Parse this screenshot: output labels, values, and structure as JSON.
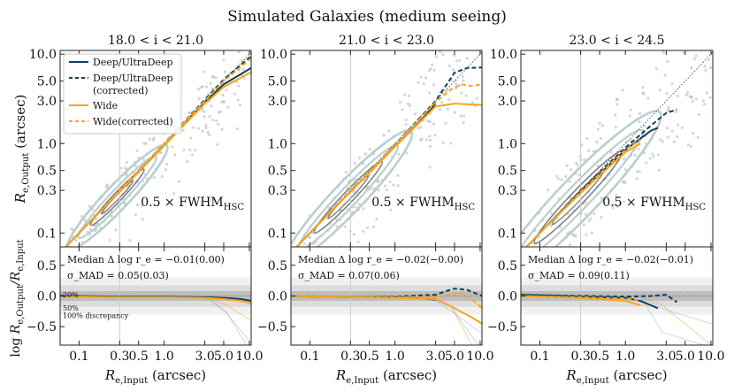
{
  "figure": {
    "title": "Simulated Galaxies (medium seeing)",
    "ylabel_top": "R_{e,Output} (arcsec)",
    "ylabel_bottom": "log R_{e,Output}/R_{e,Input}",
    "xlabel": "R_{e,Input} (arcsec)"
  },
  "legend": {
    "items": [
      {
        "label": "Deep/UltraDeep",
        "color": "#0f3d5c",
        "dash": "solid"
      },
      {
        "label": "Deep/UltraDeep",
        "label2": "(corrected)",
        "color": "#0f3d5c",
        "dash": "dashed"
      },
      {
        "label": "Wide",
        "color": "#f5a623",
        "dash": "solid"
      },
      {
        "label": "Wide(corrected)",
        "color": "#f5a623",
        "dash": "dashed"
      }
    ]
  },
  "colors": {
    "deep": "#0f3d5c",
    "wide": "#f5a623",
    "contour_dark": "#7f7f86",
    "contour_light": "#b9cfcf",
    "scatter": "#b4b4b4",
    "band_inner": "#bdbdbd",
    "band_mid": "#dcdcdc",
    "band_outer": "#f0f0f0"
  },
  "bands": {
    "labels": [
      "20%",
      "50%",
      "100% discrepancy"
    ]
  },
  "chart_data": [
    {
      "type": "line",
      "panel": "top-left",
      "title": "18.0 < i < 21.0",
      "annotation": "0.5 × FWHM",
      "annotation_sub": "HSC",
      "xscale": "log",
      "yscale": "log",
      "xlim": [
        0.06,
        10.5
      ],
      "ylim": [
        0.07,
        11
      ],
      "xticks": [
        "0.1",
        "0.3",
        "0.5",
        "1.0",
        "3.0",
        "5.0",
        "10.0"
      ],
      "yticks": [
        "0.1",
        "0.3",
        "0.5",
        "1.0",
        "3.0",
        "5.0",
        "10.0"
      ],
      "fwhm_x": 0.3,
      "series": [
        {
          "name": "Deep/UltraDeep",
          "style": "solid",
          "color": "#0f3d5c",
          "x": [
            0.06,
            0.1,
            0.3,
            0.5,
            1.0,
            3.0,
            5.0,
            10.5
          ],
          "y": [
            0.06,
            0.1,
            0.29,
            0.48,
            0.95,
            2.9,
            4.6,
            7.0
          ]
        },
        {
          "name": "Deep/UltraDeep (corrected)",
          "style": "dashed",
          "color": "#0f3d5c",
          "x": [
            0.06,
            0.1,
            0.3,
            0.5,
            1.0,
            3.0,
            5.0,
            10.5
          ],
          "y": [
            0.06,
            0.1,
            0.3,
            0.5,
            1.0,
            3.1,
            5.2,
            9.5
          ]
        },
        {
          "name": "Wide",
          "style": "solid",
          "color": "#f5a623",
          "x": [
            0.06,
            0.1,
            0.3,
            0.5,
            1.0,
            3.0,
            5.0,
            10.5
          ],
          "y": [
            0.06,
            0.1,
            0.29,
            0.48,
            0.95,
            2.8,
            4.3,
            6.3
          ]
        },
        {
          "name": "Wide(corrected)",
          "style": "dashed",
          "color": "#f5a623",
          "x": [
            0.06,
            0.1,
            0.3,
            0.5,
            1.0,
            3.0,
            5.0,
            10.5
          ],
          "y": [
            0.06,
            0.1,
            0.3,
            0.5,
            1.0,
            3.0,
            5.0,
            9.0
          ]
        }
      ]
    },
    {
      "type": "line",
      "panel": "top-middle",
      "title": "21.0 < i < 23.0",
      "annotation": "0.5 × FWHM",
      "annotation_sub": "HSC",
      "xscale": "log",
      "yscale": "log",
      "xlim": [
        0.06,
        10.5
      ],
      "ylim": [
        0.07,
        11
      ],
      "xticks": [
        "0.1",
        "0.3",
        "0.5",
        "1.0",
        "3.0",
        "5.0",
        "10.0"
      ],
      "yticks": [
        "0.1",
        "0.3",
        "0.5",
        "1.0",
        "3.0",
        "5.0",
        "10.0"
      ],
      "fwhm_x": 0.3,
      "series": [
        {
          "name": "Deep/UltraDeep",
          "style": "solid",
          "color": "#0f3d5c",
          "x": [
            0.06,
            0.1,
            0.3,
            0.5,
            1.0,
            2.0,
            3.0
          ],
          "y": [
            0.06,
            0.1,
            0.29,
            0.47,
            0.93,
            1.8,
            2.8
          ]
        },
        {
          "name": "Deep/UltraDeep (corrected)",
          "style": "dashed",
          "color": "#0f3d5c",
          "x": [
            0.06,
            0.1,
            0.3,
            0.5,
            1.0,
            3.0,
            4.0,
            5.0,
            7.0,
            10.5
          ],
          "y": [
            0.06,
            0.1,
            0.3,
            0.49,
            0.97,
            3.0,
            4.5,
            6.2,
            7.0,
            7.1
          ]
        },
        {
          "name": "Wide",
          "style": "solid",
          "color": "#f5a623",
          "x": [
            0.06,
            0.1,
            0.3,
            0.5,
            1.0,
            3.0,
            5.0,
            10.5
          ],
          "y": [
            0.06,
            0.1,
            0.29,
            0.47,
            0.92,
            2.6,
            2.8,
            2.7
          ]
        },
        {
          "name": "Wide(corrected)",
          "style": "dashed",
          "color": "#f5a623",
          "x": [
            0.06,
            0.1,
            0.3,
            0.5,
            1.0,
            3.0,
            4.5,
            6.0,
            8.0,
            10.5
          ],
          "y": [
            0.06,
            0.1,
            0.3,
            0.49,
            0.96,
            2.9,
            4.0,
            4.6,
            4.4,
            4.6
          ]
        }
      ]
    },
    {
      "type": "line",
      "panel": "top-right",
      "title": "23.0 < i < 24.5",
      "annotation": "0.5 × FWHM",
      "annotation_sub": "HSC",
      "xscale": "log",
      "yscale": "log",
      "xlim": [
        0.06,
        10.5
      ],
      "ylim": [
        0.07,
        11
      ],
      "xticks": [
        "0.1",
        "0.3",
        "0.5",
        "1.0",
        "3.0",
        "5.0",
        "10.0"
      ],
      "yticks": [
        "0.1",
        "0.3",
        "0.5",
        "1.0",
        "3.0",
        "5.0",
        "10.0"
      ],
      "fwhm_x": 0.3,
      "series": [
        {
          "name": "Deep/UltraDeep",
          "style": "solid",
          "color": "#0f3d5c",
          "x": [
            0.06,
            0.1,
            0.3,
            0.5,
            1.0,
            2.0,
            2.4
          ],
          "y": [
            0.06,
            0.1,
            0.29,
            0.46,
            0.85,
            1.4,
            1.5
          ]
        },
        {
          "name": "Deep/UltraDeep (corrected)",
          "style": "dashed",
          "color": "#0f3d5c",
          "x": [
            0.06,
            0.1,
            0.3,
            0.5,
            1.0,
            2.0,
            3.0,
            4.0
          ],
          "y": [
            0.06,
            0.1,
            0.3,
            0.48,
            0.9,
            1.6,
            2.2,
            2.4
          ]
        },
        {
          "name": "Wide",
          "style": "solid",
          "color": "#f5a623",
          "x": [
            0.06,
            0.1,
            0.3,
            0.5,
            1.0,
            1.5
          ],
          "y": [
            0.06,
            0.1,
            0.28,
            0.44,
            0.8,
            1.0
          ]
        },
        {
          "name": "Wide(corrected)",
          "style": "dashed",
          "color": "#f5a623",
          "x": [
            0.06,
            0.1,
            0.3,
            0.5,
            1.0,
            1.5
          ],
          "y": [
            0.06,
            0.1,
            0.29,
            0.46,
            0.85,
            1.1
          ]
        }
      ]
    },
    {
      "type": "line",
      "panel": "bottom-left",
      "stats": [
        "Median Δ log r_e = −0.01(0.00)",
        "σ_MAD = 0.05(0.03)"
      ],
      "xscale": "log",
      "xlim": [
        0.06,
        10.5
      ],
      "ylim": [
        -0.8,
        0.8
      ],
      "xticks": [
        "0.1",
        "0.3",
        "0.5",
        "1.0",
        "3.0",
        "5.0",
        "10.0"
      ],
      "yticks": [
        "0.5",
        "0.0",
        "−0.5"
      ],
      "series": [
        {
          "name": "Deep/UltraDeep",
          "style": "solid",
          "color": "#0f3d5c",
          "x": [
            0.06,
            0.1,
            0.3,
            1.0,
            3.0,
            5.0,
            8.0,
            10.5
          ],
          "y": [
            0.01,
            0.0,
            -0.01,
            -0.01,
            -0.02,
            -0.03,
            -0.05,
            -0.08
          ]
        },
        {
          "name": "Wide",
          "style": "solid",
          "color": "#f5a623",
          "x": [
            0.06,
            0.1,
            0.3,
            1.0,
            3.0,
            5.0,
            8.0,
            10.5
          ],
          "y": [
            0.0,
            -0.01,
            -0.02,
            -0.02,
            -0.03,
            -0.05,
            -0.08,
            -0.12
          ]
        }
      ]
    },
    {
      "type": "line",
      "panel": "bottom-middle",
      "stats": [
        "Median Δ log r_e = −0.02(−0.00)",
        "σ_MAD = 0.07(0.06)"
      ],
      "xscale": "log",
      "xlim": [
        0.06,
        10.5
      ],
      "ylim": [
        -0.8,
        0.8
      ],
      "xticks": [
        "0.1",
        "0.3",
        "0.5",
        "1.0",
        "3.0",
        "5.0",
        "10.0"
      ],
      "yticks": [
        "0.5",
        "0.0",
        "−0.5"
      ],
      "series": [
        {
          "name": "Deep/UltraDeep",
          "style": "solid",
          "color": "#0f3d5c",
          "x": [
            0.06,
            0.1,
            0.3,
            1.0,
            2.0,
            3.0
          ],
          "y": [
            0.0,
            -0.01,
            -0.02,
            -0.02,
            -0.04,
            -0.06
          ]
        },
        {
          "name": "Deep/UltraDeep (corrected)",
          "style": "dashed",
          "color": "#0f3d5c",
          "x": [
            0.06,
            0.3,
            1.0,
            3.0,
            4.0,
            5.0,
            7.0,
            10.5
          ],
          "y": [
            0.0,
            -0.01,
            -0.01,
            0.02,
            0.08,
            0.12,
            0.1,
            0.0
          ]
        },
        {
          "name": "Wide",
          "style": "solid",
          "color": "#f5a623",
          "x": [
            0.06,
            0.1,
            0.3,
            1.0,
            3.0,
            5.0,
            8.0,
            10.5
          ],
          "y": [
            0.0,
            -0.01,
            -0.02,
            -0.03,
            -0.05,
            -0.2,
            -0.35,
            -0.45
          ]
        },
        {
          "name": "Wide(corrected)",
          "style": "dashed",
          "color": "#f5a623",
          "x": [
            0.06,
            0.3,
            1.0,
            3.0,
            4.5,
            6.0,
            8.0,
            10.5
          ],
          "y": [
            0.0,
            -0.01,
            -0.02,
            -0.02,
            0.02,
            0.05,
            -0.05,
            -0.2
          ]
        }
      ]
    },
    {
      "type": "line",
      "panel": "bottom-right",
      "stats": [
        "Median Δ log r_e = −0.02(−0.01)",
        "σ_MAD = 0.09(0.11)"
      ],
      "xscale": "log",
      "xlim": [
        0.06,
        10.5
      ],
      "ylim": [
        -0.8,
        0.8
      ],
      "xticks": [
        "0.1",
        "0.3",
        "0.5",
        "1.0",
        "3.0",
        "5.0",
        "10.0"
      ],
      "yticks": [
        "0.5",
        "0.0",
        "−0.5"
      ],
      "series": [
        {
          "name": "Deep/UltraDeep",
          "style": "solid",
          "color": "#0f3d5c",
          "x": [
            0.06,
            0.1,
            0.3,
            1.0,
            1.5,
            2.4
          ],
          "y": [
            0.02,
            0.01,
            -0.01,
            -0.03,
            -0.08,
            -0.2
          ]
        },
        {
          "name": "Deep/UltraDeep (corrected)",
          "style": "dashed",
          "color": "#0f3d5c",
          "x": [
            0.06,
            0.3,
            1.0,
            2.0,
            3.0,
            4.0
          ],
          "y": [
            0.02,
            0.0,
            -0.01,
            0.0,
            0.02,
            -0.1
          ]
        },
        {
          "name": "Wide",
          "style": "solid",
          "color": "#f5a623",
          "x": [
            0.06,
            0.1,
            0.3,
            1.0,
            1.5
          ],
          "y": [
            0.0,
            -0.01,
            -0.03,
            -0.08,
            -0.15
          ]
        },
        {
          "name": "Wide(corrected)",
          "style": "dashed",
          "color": "#f5a623",
          "x": [
            0.06,
            0.3,
            1.0,
            1.5
          ],
          "y": [
            0.0,
            -0.02,
            -0.04,
            -0.07
          ]
        }
      ]
    }
  ]
}
